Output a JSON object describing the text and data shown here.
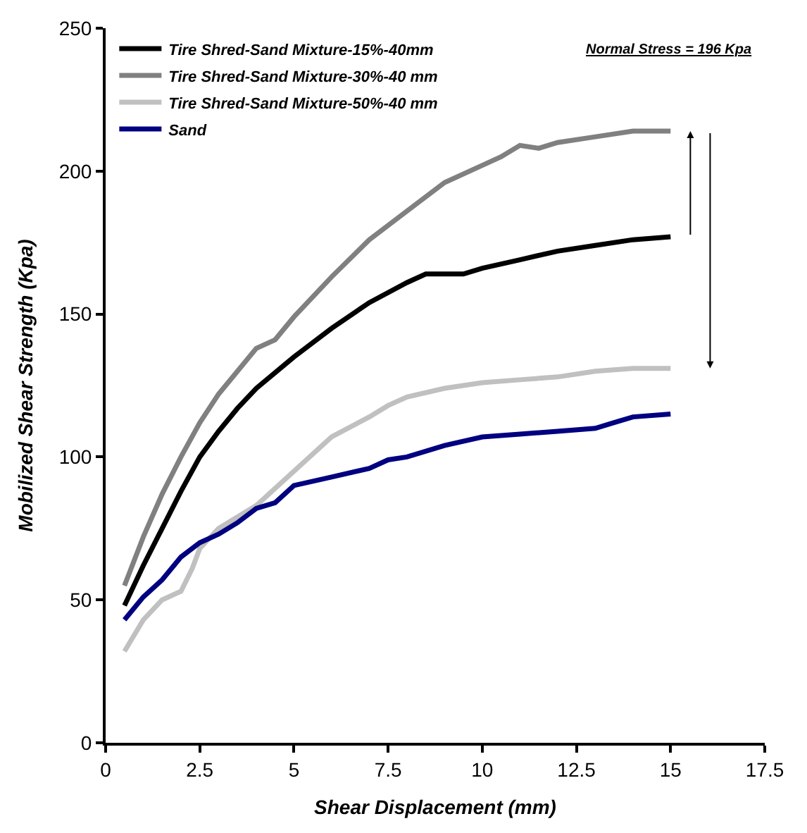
{
  "chart_data": {
    "type": "line",
    "xlabel": "Shear Displacement (mm)",
    "ylabel": "Mobilized Shear Strength (Kpa)",
    "annotations": [
      "Normal Stress = 196 Kpa"
    ],
    "xlim": [
      0,
      17.5
    ],
    "xticks": [
      0,
      2.5,
      5,
      7.5,
      10,
      12.5,
      15,
      17.5
    ],
    "ylim": [
      0,
      250
    ],
    "yticks": [
      0,
      50,
      100,
      150,
      200,
      250
    ],
    "grid": false,
    "legend": "top left",
    "marker": "none",
    "line_style": "solid",
    "series": [
      {
        "name": "Tire Shred-Sand Mixture-15%-40mm",
        "color": "#000000",
        "x": [
          0.5,
          1,
          1.5,
          2,
          2.5,
          3,
          3.5,
          4,
          5,
          6,
          7,
          8,
          8.5,
          9,
          9.5,
          10,
          11,
          12,
          13,
          14,
          15
        ],
        "values": [
          48,
          62,
          75,
          88,
          100,
          109,
          117,
          124,
          135,
          145,
          154,
          161,
          164,
          164,
          164,
          166,
          169,
          172,
          174,
          176,
          177
        ]
      },
      {
        "name": "Tire Shred-Sand Mixture-30%-40 mm",
        "color": "#808080",
        "x": [
          0.5,
          1,
          1.5,
          2,
          2.5,
          3,
          3.5,
          4,
          4.5,
          5,
          6,
          7,
          8,
          9,
          10,
          10.5,
          11,
          11.5,
          12,
          13,
          14,
          15
        ],
        "values": [
          55,
          72,
          87,
          100,
          112,
          122,
          130,
          138,
          141,
          149,
          163,
          176,
          186,
          196,
          202,
          205,
          209,
          208,
          210,
          212,
          214,
          214
        ]
      },
      {
        "name": "Tire Shred-Sand Mixture-50%-40 mm",
        "color": "#c0c0c0",
        "x": [
          0.5,
          1,
          1.5,
          2,
          2.3,
          2.5,
          3,
          4,
          5,
          6,
          7,
          7.5,
          8,
          9,
          10,
          11,
          12,
          13,
          14,
          15
        ],
        "values": [
          32,
          43,
          50,
          53,
          61,
          68,
          75,
          83,
          95,
          107,
          114,
          118,
          121,
          124,
          126,
          127,
          128,
          130,
          131,
          131
        ]
      },
      {
        "name": "Sand",
        "color": "#000080",
        "x": [
          0.5,
          1,
          1.5,
          2,
          2.5,
          3,
          3.5,
          4,
          4.5,
          5,
          6,
          7,
          7.5,
          8,
          9,
          10,
          11,
          12,
          13,
          13.5,
          14,
          15
        ],
        "values": [
          43,
          51,
          57,
          65,
          70,
          73,
          77,
          82,
          84,
          90,
          93,
          96,
          99,
          100,
          104,
          107,
          108,
          109,
          110,
          112,
          114,
          115
        ]
      }
    ]
  }
}
